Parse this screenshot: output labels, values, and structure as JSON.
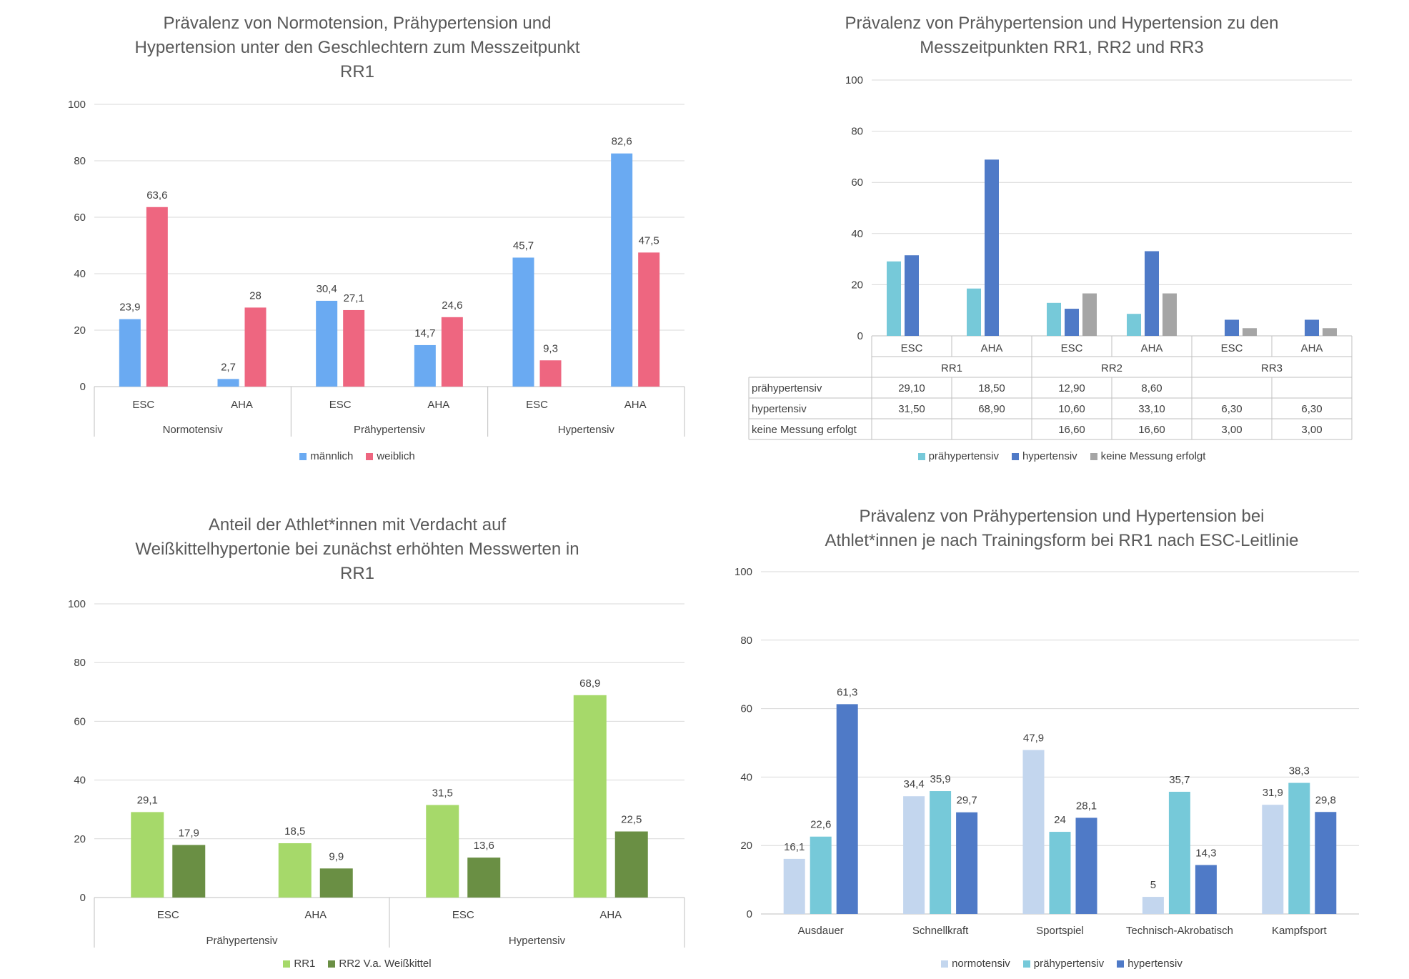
{
  "chart_data": [
    {
      "type": "bar",
      "title": "Prävalenz von Normotension, Prähypertension und\nHypertension unter den Geschlechtern zum Messzeitpunkt\nRR1",
      "groups": [
        "Normotensiv",
        "Prähypertensiv",
        "Hypertensiv"
      ],
      "categories": [
        "ESC",
        "AHA",
        "ESC",
        "AHA",
        "ESC",
        "AHA"
      ],
      "series": [
        {
          "name": "männlich",
          "color": "#6aaaf2",
          "values": [
            23.9,
            2.7,
            30.4,
            14.7,
            45.7,
            82.6
          ]
        },
        {
          "name": "weiblich",
          "color": "#ee6680",
          "values": [
            63.6,
            28,
            27.1,
            24.6,
            9.3,
            47.5
          ]
        }
      ],
      "value_labels": [
        [
          "23,9",
          "2,7",
          "30,4",
          "14,7",
          "45,7",
          "82,6"
        ],
        [
          "63,6",
          "28",
          "27,1",
          "24,6",
          "9,3",
          "47,5"
        ]
      ],
      "ylim": [
        0,
        100
      ],
      "yticks": [
        "0",
        "20",
        "40",
        "60",
        "80",
        "100"
      ],
      "grid": true,
      "legend": "bottom"
    },
    {
      "type": "bar",
      "title": "Prävalenz von Prähypertension und Hypertension zu den\nMesszeitpunkten RR1, RR2 und RR3",
      "groups": [
        "RR1",
        "RR2",
        "RR3"
      ],
      "categories": [
        "ESC",
        "AHA",
        "ESC",
        "AHA",
        "ESC",
        "AHA"
      ],
      "series": [
        {
          "name": "prähypertensiv",
          "color": "#76c9d9",
          "values": [
            29.1,
            18.5,
            12.9,
            8.6,
            null,
            null
          ]
        },
        {
          "name": "hypertensiv",
          "color": "#4f7ac7",
          "values": [
            31.5,
            68.9,
            10.6,
            33.1,
            6.3,
            6.3
          ]
        },
        {
          "name": "keine Messung erfolgt",
          "color": "#a5a5a5",
          "values": [
            null,
            null,
            16.6,
            16.6,
            3.0,
            3.0
          ]
        }
      ],
      "table": [
        [
          "29,10",
          "18,50",
          "12,90",
          "8,60",
          "",
          ""
        ],
        [
          "31,50",
          "68,90",
          "10,60",
          "33,10",
          "6,30",
          "6,30"
        ],
        [
          "",
          "",
          "16,60",
          "16,60",
          "3,00",
          "3,00"
        ]
      ],
      "ylim": [
        0,
        100
      ],
      "yticks": [
        "0",
        "20",
        "40",
        "60",
        "80",
        "100"
      ],
      "grid": true,
      "legend": "bottom"
    },
    {
      "type": "bar",
      "title": "Anteil der Athlet*innen mit Verdacht auf\nWeißkittelhypertonie bei zunächst erhöhten Messwerten in\nRR1",
      "groups": [
        "Prähypertensiv",
        "Hypertensiv"
      ],
      "categories": [
        "ESC",
        "AHA",
        "ESC",
        "AHA"
      ],
      "series": [
        {
          "name": "RR1",
          "color": "#a6d96a",
          "values": [
            29.1,
            18.5,
            31.5,
            68.9
          ]
        },
        {
          "name": "RR2 V.a. Weißkittel",
          "color": "#6a8f44",
          "values": [
            17.9,
            9.9,
            13.6,
            22.5
          ]
        }
      ],
      "value_labels": [
        [
          "29,1",
          "18,5",
          "31,5",
          "68,9"
        ],
        [
          "17,9",
          "9,9",
          "13,6",
          "22,5"
        ]
      ],
      "ylim": [
        0,
        100
      ],
      "yticks": [
        "0",
        "20",
        "40",
        "60",
        "80",
        "100"
      ],
      "grid": true,
      "legend": "bottom"
    },
    {
      "type": "bar",
      "title": "Prävalenz von Prähypertension und Hypertension bei\nAthlet*innen je nach  Trainingsform bei RR1 nach ESC-Leitlinie",
      "categories": [
        "Ausdauer",
        "Schnellkraft",
        "Sportspiel",
        "Technisch-Akrobatisch",
        "Kampfsport"
      ],
      "series": [
        {
          "name": "normotensiv",
          "color": "#c3d6ee",
          "values": [
            16.1,
            34.4,
            47.9,
            5,
            31.9
          ]
        },
        {
          "name": "prähypertensiv",
          "color": "#76c9d9",
          "values": [
            22.6,
            35.9,
            24,
            35.7,
            38.3
          ]
        },
        {
          "name": "hypertensiv",
          "color": "#4f7ac7",
          "values": [
            61.3,
            29.7,
            28.1,
            14.3,
            29.8
          ]
        }
      ],
      "value_labels": [
        [
          "16,1",
          "34,4",
          "47,9",
          "5",
          "31,9"
        ],
        [
          "22,6",
          "35,9",
          "24",
          "35,7",
          "38,3"
        ],
        [
          "61,3",
          "29,7",
          "28,1",
          "14,3",
          "29,8"
        ]
      ],
      "ylim": [
        0,
        100
      ],
      "yticks": [
        "0",
        "20",
        "40",
        "60",
        "80",
        "100"
      ],
      "grid": true,
      "legend": "bottom"
    }
  ]
}
